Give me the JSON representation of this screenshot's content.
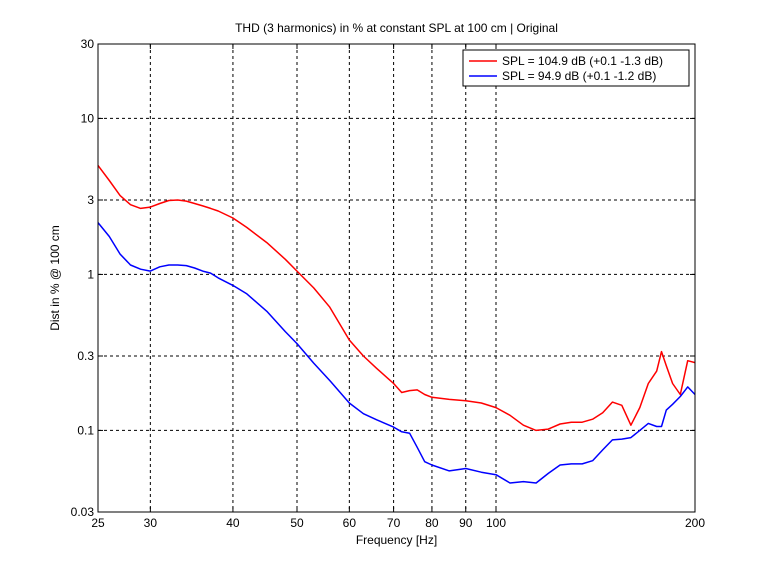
{
  "chart_data": {
    "type": "line",
    "title": "THD (3 harmonics) in % at constant SPL at 100 cm | Original",
    "xlabel": "Frequency [Hz]",
    "ylabel": "Dist in % @ 100 cm",
    "x_scale": "log",
    "y_scale": "log",
    "xlim": [
      25,
      200
    ],
    "ylim": [
      0.03,
      30
    ],
    "x_ticks": [
      25,
      30,
      40,
      50,
      60,
      70,
      80,
      90,
      100,
      200
    ],
    "x_tick_labels": [
      "25",
      "30",
      "40",
      "50",
      "60",
      "70",
      "80",
      "90",
      "100",
      "200"
    ],
    "y_ticks": [
      0.03,
      0.1,
      0.3,
      1,
      3,
      10,
      30
    ],
    "y_tick_labels": [
      "0.03",
      "0.1",
      "0.3",
      "1",
      "3",
      "10",
      "30"
    ],
    "grid": true,
    "legend_position": "top-right",
    "series": [
      {
        "name": "SPL = 104.9 dB (+0.1 -1.3 dB)",
        "color": "#ff0000",
        "x": [
          25,
          26,
          27,
          28,
          29,
          30,
          31,
          32,
          33,
          34,
          35,
          36,
          37,
          38,
          40,
          42,
          45,
          48,
          50,
          53,
          56,
          60,
          63,
          66,
          70,
          72,
          74,
          76,
          78,
          80,
          85,
          90,
          95,
          100,
          105,
          110,
          115,
          120,
          125,
          130,
          135,
          140,
          145,
          150,
          155,
          160,
          165,
          170,
          175,
          178,
          181,
          185,
          190,
          195,
          200
        ],
        "y": [
          5.0,
          4.0,
          3.2,
          2.8,
          2.65,
          2.7,
          2.85,
          2.98,
          3.0,
          2.95,
          2.85,
          2.75,
          2.65,
          2.55,
          2.3,
          2.0,
          1.6,
          1.25,
          1.05,
          0.82,
          0.62,
          0.38,
          0.3,
          0.25,
          0.2,
          0.175,
          0.18,
          0.182,
          0.17,
          0.163,
          0.158,
          0.155,
          0.15,
          0.14,
          0.125,
          0.108,
          0.1,
          0.102,
          0.11,
          0.113,
          0.113,
          0.118,
          0.13,
          0.152,
          0.145,
          0.108,
          0.14,
          0.2,
          0.24,
          0.32,
          0.26,
          0.2,
          0.17,
          0.28,
          0.272
        ]
      },
      {
        "name": "SPL = 94.9 dB (+0.1 -1.2 dB)",
        "color": "#0000ff",
        "x": [
          25,
          26,
          27,
          28,
          29,
          30,
          31,
          32,
          33,
          34,
          35,
          36,
          37,
          38,
          40,
          42,
          45,
          48,
          50,
          53,
          56,
          60,
          63,
          66,
          70,
          72,
          74,
          76,
          78,
          80,
          85,
          90,
          95,
          100,
          105,
          110,
          115,
          120,
          125,
          130,
          135,
          140,
          145,
          150,
          155,
          160,
          165,
          170,
          175,
          178,
          181,
          185,
          190,
          195,
          200
        ],
        "y": [
          2.15,
          1.75,
          1.35,
          1.15,
          1.08,
          1.05,
          1.12,
          1.15,
          1.15,
          1.14,
          1.1,
          1.05,
          1.02,
          0.95,
          0.85,
          0.75,
          0.58,
          0.43,
          0.36,
          0.27,
          0.21,
          0.15,
          0.128,
          0.117,
          0.105,
          0.098,
          0.096,
          0.078,
          0.063,
          0.06,
          0.055,
          0.057,
          0.054,
          0.052,
          0.046,
          0.047,
          0.046,
          0.053,
          0.06,
          0.061,
          0.061,
          0.064,
          0.075,
          0.087,
          0.088,
          0.09,
          0.1,
          0.111,
          0.106,
          0.106,
          0.135,
          0.147,
          0.165,
          0.19,
          0.17
        ]
      }
    ]
  }
}
